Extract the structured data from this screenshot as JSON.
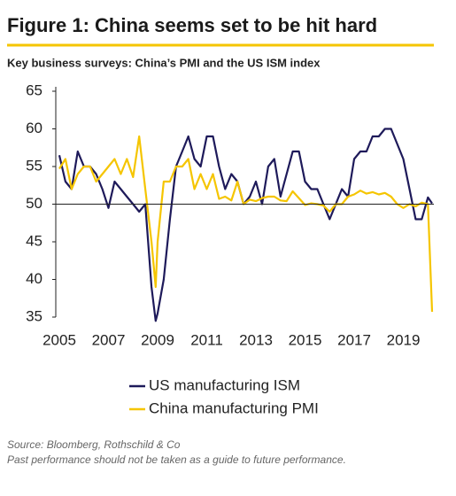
{
  "chart_data": {
    "type": "line",
    "title": "Figure 1: China seems set to be hit hard",
    "subtitle": "Key business surveys: China’s PMI and the US ISM index",
    "source": "Source: Bloomberg, Rothschild & Co",
    "note": "Past performance should not be taken as a guide to future performance.",
    "x": [
      2005.0,
      2005.25,
      2005.5,
      2005.75,
      2006.0,
      2006.25,
      2006.5,
      2006.75,
      2007.0,
      2007.25,
      2007.5,
      2007.75,
      2008.0,
      2008.25,
      2008.5,
      2008.75,
      2008.92,
      2009.0,
      2009.25,
      2009.5,
      2009.75,
      2010.0,
      2010.25,
      2010.5,
      2010.75,
      2011.0,
      2011.25,
      2011.5,
      2011.75,
      2012.0,
      2012.25,
      2012.5,
      2012.75,
      2013.0,
      2013.25,
      2013.5,
      2013.75,
      2014.0,
      2014.25,
      2014.5,
      2014.75,
      2015.0,
      2015.25,
      2015.5,
      2015.75,
      2016.0,
      2016.25,
      2016.5,
      2016.75,
      2017.0,
      2017.25,
      2017.5,
      2017.75,
      2018.0,
      2018.25,
      2018.5,
      2018.75,
      2019.0,
      2019.25,
      2019.5,
      2019.75,
      2020.0,
      2020.17
    ],
    "series": [
      {
        "name": "US manufacturing ISM",
        "color": "#1e1a5a",
        "values": [
          56.5,
          53,
          52,
          57,
          55,
          55,
          54,
          52,
          49.5,
          53,
          52,
          51,
          50,
          49,
          50,
          39,
          34.5,
          35.5,
          40,
          48,
          55,
          57,
          59,
          56,
          55,
          59,
          59,
          55,
          52,
          54,
          53,
          50,
          51,
          53,
          50,
          55,
          56,
          51,
          54,
          57,
          57,
          53,
          52,
          52,
          50,
          48,
          50,
          52,
          51,
          56,
          57,
          57,
          59,
          59,
          60,
          60,
          58,
          56,
          52,
          48,
          48,
          50.9,
          50.1
        ]
      },
      {
        "name": "China manufacturing PMI",
        "color": "#f5c500",
        "values": [
          54.7,
          56,
          52,
          54,
          55,
          55,
          53,
          54,
          55,
          56,
          54,
          56,
          53.6,
          59,
          52,
          45,
          39,
          45,
          53,
          53,
          55,
          55,
          56,
          52,
          54,
          52,
          54,
          50.7,
          51,
          50.5,
          53,
          50,
          50.6,
          50.4,
          50.8,
          51,
          51,
          50.5,
          50.4,
          51.7,
          50.8,
          49.9,
          50.1,
          50,
          49.8,
          49,
          50,
          50,
          51,
          51.3,
          51.8,
          51.4,
          51.6,
          51.3,
          51.5,
          51,
          50,
          49.5,
          50,
          49.7,
          50.2,
          50,
          35.7
        ]
      }
    ],
    "xlim": [
      2005,
      2020.17
    ],
    "xticks": [
      2005,
      2007,
      2009,
      2011,
      2013,
      2015,
      2017,
      2019
    ],
    "ylim": [
      35,
      65
    ],
    "yticks": [
      35,
      40,
      45,
      50,
      55,
      60,
      65
    ],
    "reference_line": 50
  }
}
